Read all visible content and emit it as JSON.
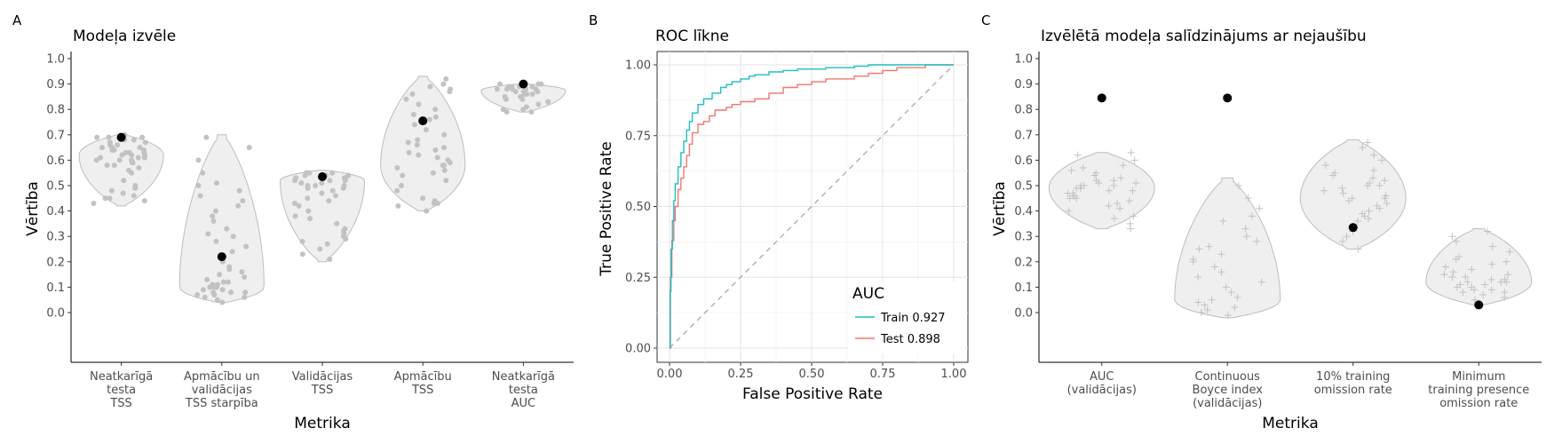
{
  "chart_data": [
    {
      "panel": "A",
      "type": "violin",
      "title": "Modeļa izvēle",
      "ylabel": "Vērtība",
      "xlabel": "Metrika",
      "ylim": [
        0,
        1
      ],
      "yticks": [
        "0.0",
        "0.1",
        "0.2",
        "0.3",
        "0.4",
        "0.5",
        "0.6",
        "0.7",
        "0.8",
        "0.9",
        "1.0"
      ],
      "categories": [
        {
          "label": [
            "Neatkarīgā",
            "testa",
            "TSS"
          ],
          "min": 0.42,
          "max": 0.7,
          "peak": 0.62,
          "selected": 0.69,
          "points": [
            0.43,
            0.44,
            0.45,
            0.45,
            0.46,
            0.47,
            0.48,
            0.49,
            0.5,
            0.52,
            0.55,
            0.56,
            0.57,
            0.58,
            0.58,
            0.59,
            0.59,
            0.6,
            0.6,
            0.6,
            0.61,
            0.61,
            0.61,
            0.62,
            0.62,
            0.62,
            0.63,
            0.63,
            0.63,
            0.64,
            0.64,
            0.64,
            0.65,
            0.65,
            0.65,
            0.66,
            0.66,
            0.67,
            0.67,
            0.68,
            0.68,
            0.69,
            0.69,
            0.69,
            0.7
          ]
        },
        {
          "label": [
            "Apmācību un",
            "validācijas",
            "TSS starpība"
          ],
          "min": 0.04,
          "max": 0.7,
          "peak": 0.1,
          "selected": 0.22,
          "points": [
            0.04,
            0.05,
            0.06,
            0.06,
            0.07,
            0.07,
            0.08,
            0.08,
            0.08,
            0.09,
            0.09,
            0.1,
            0.1,
            0.1,
            0.11,
            0.11,
            0.12,
            0.12,
            0.13,
            0.14,
            0.15,
            0.16,
            0.17,
            0.18,
            0.2,
            0.22,
            0.24,
            0.26,
            0.28,
            0.3,
            0.31,
            0.33,
            0.36,
            0.38,
            0.4,
            0.42,
            0.44,
            0.46,
            0.48,
            0.5,
            0.51,
            0.55,
            0.6,
            0.65,
            0.69
          ]
        },
        {
          "label": [
            "Validācijas",
            "TSS"
          ],
          "min": 0.2,
          "max": 0.56,
          "peak": 0.52,
          "selected": 0.535,
          "points": [
            0.21,
            0.23,
            0.25,
            0.27,
            0.28,
            0.29,
            0.3,
            0.31,
            0.32,
            0.33,
            0.35,
            0.37,
            0.38,
            0.4,
            0.42,
            0.43,
            0.44,
            0.45,
            0.46,
            0.47,
            0.48,
            0.49,
            0.49,
            0.5,
            0.5,
            0.5,
            0.51,
            0.51,
            0.52,
            0.52,
            0.52,
            0.53,
            0.53,
            0.53,
            0.54,
            0.54,
            0.54,
            0.55,
            0.55,
            0.55,
            0.55
          ]
        },
        {
          "label": [
            "Apmācību",
            "TSS"
          ],
          "min": 0.4,
          "max": 0.93,
          "peak": 0.58,
          "selected": 0.755,
          "points": [
            0.4,
            0.42,
            0.43,
            0.43,
            0.44,
            0.45,
            0.48,
            0.5,
            0.52,
            0.54,
            0.55,
            0.56,
            0.57,
            0.58,
            0.58,
            0.59,
            0.6,
            0.61,
            0.62,
            0.63,
            0.64,
            0.65,
            0.66,
            0.67,
            0.68,
            0.7,
            0.72,
            0.74,
            0.76,
            0.77,
            0.78,
            0.8,
            0.82,
            0.84,
            0.86,
            0.87,
            0.88,
            0.89,
            0.9,
            0.92
          ]
        },
        {
          "label": [
            "Neatkarīgā",
            "testa",
            "AUC"
          ],
          "min": 0.79,
          "max": 0.9,
          "peak": 0.875,
          "selected": 0.9,
          "points": [
            0.79,
            0.79,
            0.8,
            0.8,
            0.81,
            0.82,
            0.83,
            0.84,
            0.84,
            0.85,
            0.85,
            0.86,
            0.86,
            0.86,
            0.87,
            0.87,
            0.87,
            0.87,
            0.88,
            0.88,
            0.88,
            0.88,
            0.88,
            0.89,
            0.89,
            0.89,
            0.89,
            0.9,
            0.9,
            0.9
          ]
        }
      ]
    },
    {
      "panel": "B",
      "type": "line",
      "title": "ROC līkne",
      "xlabel": "False Positive Rate",
      "ylabel": "True Positive Rate",
      "xlim": [
        0,
        1
      ],
      "ylim": [
        0,
        1
      ],
      "xticks": [
        "0.00",
        "0.25",
        "0.50",
        "0.75",
        "1.00"
      ],
      "yticks": [
        "0.00",
        "0.25",
        "0.50",
        "0.75",
        "1.00"
      ],
      "legend": {
        "title": "AUC",
        "position": "bottom-right"
      },
      "series": [
        {
          "name": "Train 0.927",
          "color": "#1dbfc4",
          "x": [
            0,
            0.002,
            0.005,
            0.01,
            0.015,
            0.02,
            0.03,
            0.04,
            0.05,
            0.06,
            0.07,
            0.08,
            0.1,
            0.12,
            0.15,
            0.18,
            0.2,
            0.22,
            0.25,
            0.28,
            0.3,
            0.35,
            0.4,
            0.45,
            0.5,
            0.55,
            0.6,
            0.65,
            0.7,
            0.75,
            0.8,
            0.85,
            0.9,
            0.95,
            1.0
          ],
          "y": [
            0,
            0.2,
            0.35,
            0.45,
            0.52,
            0.58,
            0.64,
            0.69,
            0.73,
            0.77,
            0.8,
            0.83,
            0.86,
            0.88,
            0.9,
            0.92,
            0.93,
            0.94,
            0.95,
            0.96,
            0.965,
            0.975,
            0.98,
            0.985,
            0.985,
            0.99,
            0.99,
            0.995,
            1.0,
            1.0,
            1.0,
            1.0,
            1.0,
            1.0,
            1.0
          ]
        },
        {
          "name": "Test 0.898",
          "color": "#f0776f",
          "x": [
            0,
            0.003,
            0.008,
            0.015,
            0.02,
            0.03,
            0.04,
            0.05,
            0.06,
            0.07,
            0.08,
            0.1,
            0.12,
            0.14,
            0.16,
            0.2,
            0.22,
            0.25,
            0.3,
            0.35,
            0.4,
            0.45,
            0.5,
            0.55,
            0.6,
            0.65,
            0.7,
            0.75,
            0.8,
            0.85,
            0.9,
            1.0
          ],
          "y": [
            0,
            0.25,
            0.38,
            0.45,
            0.5,
            0.56,
            0.6,
            0.64,
            0.68,
            0.72,
            0.76,
            0.79,
            0.8,
            0.82,
            0.84,
            0.85,
            0.86,
            0.87,
            0.88,
            0.9,
            0.92,
            0.93,
            0.94,
            0.95,
            0.95,
            0.96,
            0.97,
            0.98,
            0.99,
            0.99,
            1.0,
            1.0
          ]
        }
      ],
      "reference_line": {
        "x": [
          0,
          1
        ],
        "y": [
          0,
          1
        ],
        "style": "dashed",
        "color": "#b3b3b3"
      }
    },
    {
      "panel": "C",
      "type": "violin",
      "title": "Izvēlētā modeļa salīdzinājums ar nejaušību",
      "ylabel": "Vērtība",
      "xlabel": "Metrika",
      "ylim": [
        0,
        1
      ],
      "yticks": [
        "0.0",
        "0.1",
        "0.2",
        "0.3",
        "0.4",
        "0.5",
        "0.6",
        "0.7",
        "0.8",
        "0.9",
        "1.0"
      ],
      "categories": [
        {
          "label": [
            "AUC",
            "(validācijas)"
          ],
          "min": 0.33,
          "max": 0.63,
          "peak": 0.49,
          "selected": 0.845,
          "points": [
            0.33,
            0.35,
            0.37,
            0.38,
            0.4,
            0.41,
            0.42,
            0.43,
            0.44,
            0.45,
            0.45,
            0.46,
            0.46,
            0.47,
            0.47,
            0.48,
            0.48,
            0.49,
            0.49,
            0.5,
            0.5,
            0.5,
            0.51,
            0.51,
            0.52,
            0.52,
            0.53,
            0.54,
            0.55,
            0.56,
            0.57,
            0.58,
            0.6,
            0.62,
            0.63
          ]
        },
        {
          "label": [
            "Continuous",
            "Boyce index",
            "(validācijas)"
          ],
          "min": -0.02,
          "max": 0.53,
          "peak": 0.05,
          "selected": 0.845,
          "points": [
            -0.01,
            0.0,
            0.01,
            0.02,
            0.03,
            0.04,
            0.05,
            0.06,
            0.08,
            0.1,
            0.12,
            0.14,
            0.16,
            0.18,
            0.2,
            0.21,
            0.23,
            0.25,
            0.26,
            0.28,
            0.3,
            0.33,
            0.36,
            0.38,
            0.41,
            0.45,
            0.5
          ]
        },
        {
          "label": [
            "10% training",
            "omission rate"
          ],
          "min": 0.25,
          "max": 0.68,
          "peak": 0.45,
          "selected": 0.335,
          "points": [
            0.25,
            0.28,
            0.3,
            0.32,
            0.34,
            0.36,
            0.37,
            0.38,
            0.39,
            0.4,
            0.41,
            0.42,
            0.43,
            0.44,
            0.45,
            0.45,
            0.46,
            0.47,
            0.48,
            0.49,
            0.5,
            0.5,
            0.51,
            0.52,
            0.53,
            0.54,
            0.55,
            0.56,
            0.58,
            0.6,
            0.62,
            0.65,
            0.67
          ]
        },
        {
          "label": [
            "Minimum",
            "training presence",
            "omission rate"
          ],
          "min": 0.03,
          "max": 0.33,
          "peak": 0.12,
          "selected": 0.03,
          "points": [
            0.03,
            0.05,
            0.06,
            0.07,
            0.08,
            0.08,
            0.09,
            0.09,
            0.1,
            0.1,
            0.11,
            0.11,
            0.12,
            0.12,
            0.12,
            0.13,
            0.13,
            0.14,
            0.14,
            0.15,
            0.15,
            0.16,
            0.17,
            0.18,
            0.19,
            0.2,
            0.21,
            0.22,
            0.24,
            0.26,
            0.28,
            0.3,
            0.32
          ]
        }
      ]
    }
  ],
  "panel_letters": [
    "A",
    "B",
    "C"
  ]
}
